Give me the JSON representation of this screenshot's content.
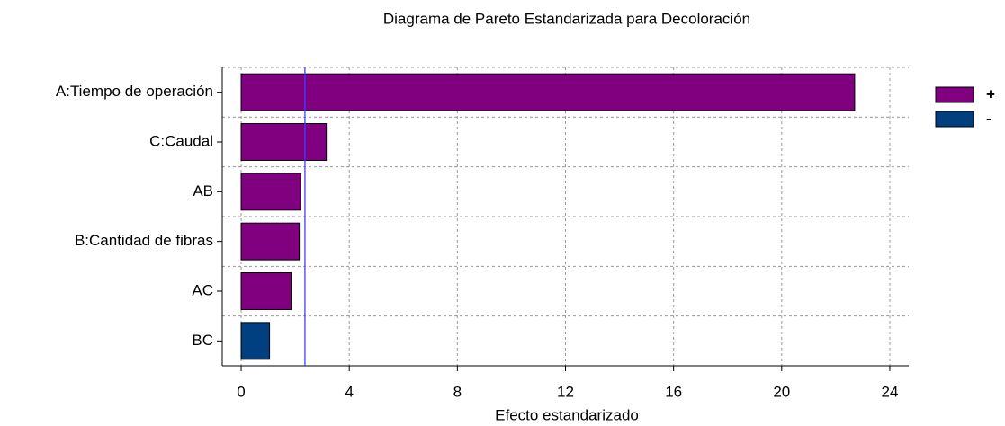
{
  "chart_data": {
    "type": "bar",
    "orientation": "horizontal",
    "title": "Diagrama de Pareto Estandarizada para Decoloración",
    "x_label": "Efecto estandarizado",
    "categories": [
      "A:Tiempo de operación",
      "C:Caudal",
      "AB",
      "B:Cantidad de fibras",
      "AC",
      "BC"
    ],
    "series": [
      {
        "name": "+",
        "color": "#800080",
        "values": [
          22.7,
          3.15,
          2.2,
          2.15,
          1.85,
          null
        ]
      },
      {
        "name": "-",
        "color": "#004080",
        "values": [
          null,
          null,
          null,
          null,
          null,
          1.05
        ]
      }
    ],
    "reference_line": 2.36,
    "reference_color": "#4040ff",
    "xlim": [
      -0.7,
      24.7
    ],
    "xticks": [
      0,
      4,
      8,
      12,
      16,
      20,
      24
    ],
    "grid": true,
    "legend": "right"
  }
}
